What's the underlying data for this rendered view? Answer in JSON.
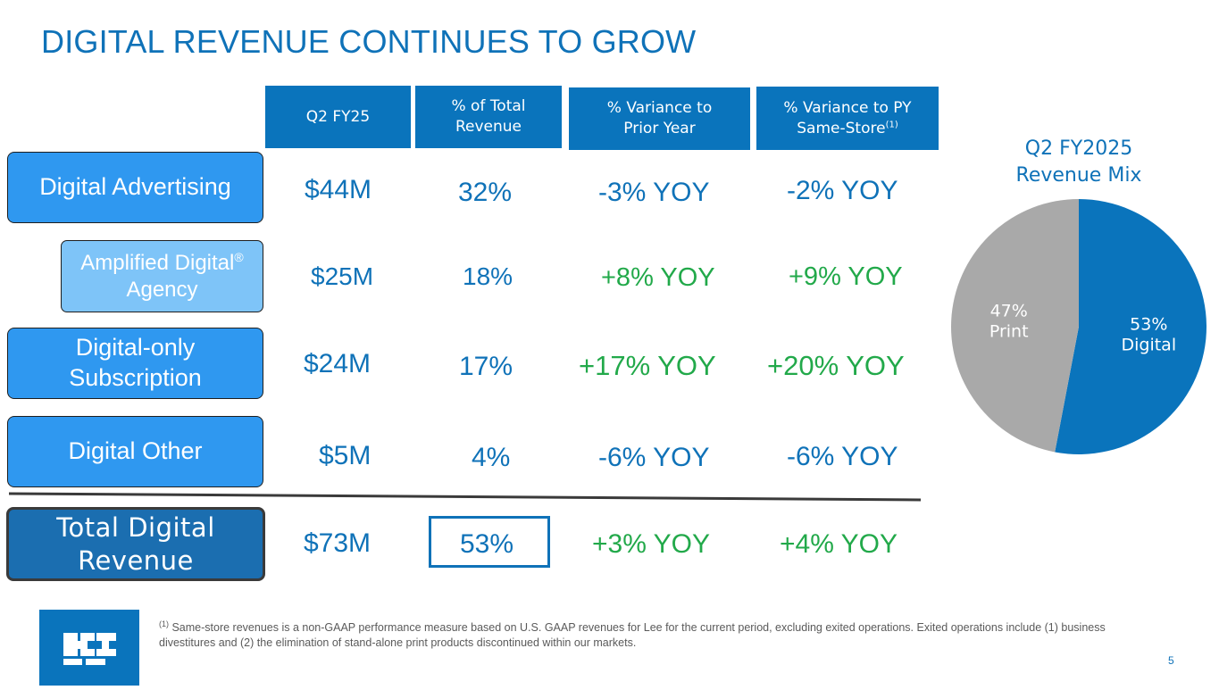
{
  "title": "DIGITAL REVENUE CONTINUES TO GROW",
  "columns": {
    "q2": "Q2 FY25",
    "pct_total": "% of Total Revenue",
    "var_prior": "% Variance to Prior Year",
    "var_py": "% Variance to PY Same-Store",
    "var_py_sup": "(1)"
  },
  "rows": [
    {
      "label": "Digital Advertising",
      "q2": "$44M",
      "pct": "32%",
      "var_prior": "-3% YOY",
      "var_py": "-2% YOY"
    },
    {
      "label": "Amplified Digital",
      "label_sup": "®",
      "label_rest": " Agency",
      "q2": "$25M",
      "pct": "18%",
      "var_prior": "+8% YOY",
      "var_py": "+9% YOY"
    },
    {
      "label": "Digital-only Subscription",
      "q2": "$24M",
      "pct": "17%",
      "var_prior": "+17% YOY",
      "var_py": "+20% YOY"
    },
    {
      "label": "Digital Other",
      "q2": "$5M",
      "pct": "4%",
      "var_prior": "-6% YOY",
      "var_py": "-6% YOY"
    }
  ],
  "total": {
    "label": "Total Digital Revenue",
    "q2": "$73M",
    "pct": "53%",
    "var_prior": "+3% YOY",
    "var_py": "+4% YOY"
  },
  "colors": {
    "brand_blue": "#0a74bc",
    "light_blue": "#2f98f0",
    "pale_blue": "#7ec4f8",
    "dark_blue": "#1b6eb0",
    "positive_green": "#22a94a",
    "print_gray": "#a9a9a9"
  },
  "chart_data": {
    "type": "pie",
    "title": "Q2 FY2025 Revenue Mix",
    "slices": [
      {
        "label": "Digital",
        "value": 53,
        "display": "53%",
        "color": "#0a74bc"
      },
      {
        "label": "Print",
        "value": 47,
        "display": "47%",
        "color": "#a9a9a9"
      }
    ]
  },
  "footnote": {
    "sup": "(1)",
    "text": " Same-store revenues is a non-GAAP performance measure based on U.S. GAAP revenues for Lee for the current period, excluding exited operations. Exited operations include (1) business divestitures and (2) the elimination of stand-alone print products discontinued within our markets."
  },
  "page_number": "5",
  "logo": {
    "icon": "lee-logo-icon"
  }
}
